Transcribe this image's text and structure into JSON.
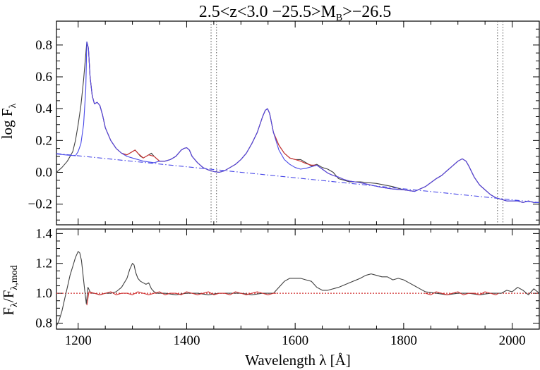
{
  "chart_data": [
    {
      "type": "line",
      "panel": "top",
      "title": "2.5<z<3.0 −25.5>M",
      "title_subscript": "B",
      "title_suffix": ">−26.5",
      "ylabel": "log F",
      "ylabel_subscript": "λ",
      "xlim": [
        1160,
        2050
      ],
      "ylim": [
        -0.33,
        0.95
      ],
      "yticks": [
        -0.2,
        0.0,
        0.2,
        0.4,
        0.6,
        0.8
      ],
      "ytick_labels": [
        "−0.2",
        "0.0",
        "0.2",
        "0.4",
        "0.6",
        "0.8"
      ],
      "xticks": [
        1200,
        1400,
        1600,
        1800,
        2000
      ],
      "vlines_dotted": [
        1445,
        1455,
        1973,
        1983
      ],
      "series": [
        {
          "role": "observed spectrum",
          "color": "#404040",
          "x": [
            1160,
            1170,
            1180,
            1190,
            1195,
            1200,
            1205,
            1210,
            1213,
            1216,
            1219,
            1222,
            1226,
            1230,
            1235,
            1240,
            1245,
            1250,
            1260,
            1270,
            1280,
            1290,
            1300,
            1305,
            1310,
            1315,
            1320,
            1330,
            1335,
            1340,
            1350,
            1360,
            1370,
            1380,
            1390,
            1395,
            1400,
            1405,
            1410,
            1420,
            1430,
            1440,
            1450,
            1460,
            1470,
            1480,
            1490,
            1500,
            1510,
            1520,
            1530,
            1540,
            1545,
            1549,
            1553,
            1560,
            1570,
            1580,
            1590,
            1600,
            1610,
            1620,
            1630,
            1640,
            1650,
            1660,
            1670,
            1680,
            1700,
            1720,
            1750,
            1780,
            1800,
            1820,
            1840,
            1860,
            1870,
            1880,
            1890,
            1900,
            1908,
            1915,
            1920,
            1930,
            1940,
            1950,
            1960,
            1970,
            1980,
            1990,
            2000,
            2010,
            2020,
            2030,
            2040,
            2050
          ],
          "y": [
            0.0,
            0.03,
            0.07,
            0.13,
            0.2,
            0.3,
            0.42,
            0.58,
            0.7,
            0.82,
            0.78,
            0.6,
            0.48,
            0.43,
            0.44,
            0.42,
            0.36,
            0.28,
            0.2,
            0.15,
            0.12,
            0.11,
            0.13,
            0.14,
            0.12,
            0.1,
            0.09,
            0.11,
            0.12,
            0.1,
            0.07,
            0.07,
            0.08,
            0.1,
            0.14,
            0.15,
            0.155,
            0.14,
            0.1,
            0.06,
            0.03,
            0.015,
            0.005,
            0.0,
            0.01,
            0.03,
            0.05,
            0.08,
            0.12,
            0.18,
            0.25,
            0.35,
            0.39,
            0.4,
            0.37,
            0.25,
            0.17,
            0.12,
            0.09,
            0.08,
            0.08,
            0.06,
            0.04,
            0.05,
            0.03,
            0.02,
            0.0,
            -0.04,
            -0.06,
            -0.06,
            -0.07,
            -0.09,
            -0.11,
            -0.12,
            -0.09,
            -0.04,
            -0.02,
            0.01,
            0.04,
            0.07,
            0.085,
            0.07,
            0.04,
            -0.03,
            -0.08,
            -0.11,
            -0.14,
            -0.16,
            -0.17,
            -0.18,
            -0.18,
            -0.18,
            -0.19,
            -0.18,
            -0.19,
            -0.19
          ]
        },
        {
          "role": "model fit",
          "color": "#d03030",
          "x": [
            1216,
            1219,
            1222,
            1226,
            1230,
            1235,
            1240,
            1245,
            1250,
            1260,
            1270,
            1280,
            1290,
            1300,
            1305,
            1310,
            1320,
            1330,
            1340,
            1350,
            1360,
            1370,
            1380,
            1390,
            1395,
            1400,
            1405,
            1410,
            1420,
            1430,
            1440,
            1450,
            1460,
            1470,
            1480,
            1490,
            1500,
            1510,
            1520,
            1530,
            1540,
            1545,
            1549,
            1553,
            1560,
            1570,
            1580,
            1590,
            1600,
            1610,
            1620,
            1630,
            1640,
            1650,
            1660,
            1670,
            1680,
            1690,
            1700,
            1710,
            1720,
            1740,
            1760,
            1780,
            1800,
            1820,
            1840,
            1860,
            1870,
            1880,
            1890,
            1900,
            1908,
            1915,
            1920,
            1930,
            1940,
            1950,
            1960,
            1970,
            1980,
            1990,
            2000,
            2010,
            2020,
            2030,
            2040,
            2050
          ],
          "y": [
            0.82,
            0.78,
            0.6,
            0.48,
            0.43,
            0.44,
            0.42,
            0.36,
            0.28,
            0.2,
            0.15,
            0.12,
            0.11,
            0.13,
            0.14,
            0.12,
            0.09,
            0.11,
            0.1,
            0.07,
            0.07,
            0.08,
            0.1,
            0.14,
            0.15,
            0.155,
            0.14,
            0.1,
            0.06,
            0.03,
            0.015,
            0.005,
            0.0,
            0.01,
            0.03,
            0.05,
            0.08,
            0.12,
            0.18,
            0.25,
            0.35,
            0.39,
            0.4,
            0.37,
            0.25,
            0.17,
            0.12,
            0.09,
            0.08,
            0.07,
            0.055,
            0.045,
            0.045,
            0.02,
            -0.005,
            -0.02,
            -0.03,
            -0.045,
            -0.055,
            -0.06,
            -0.065,
            -0.08,
            -0.095,
            -0.105,
            -0.11,
            -0.12,
            -0.09,
            -0.04,
            -0.02,
            0.01,
            0.04,
            0.07,
            0.085,
            0.07,
            0.04,
            -0.03,
            -0.08,
            -0.11,
            -0.14,
            -0.16,
            -0.17,
            -0.18,
            -0.18,
            -0.18,
            -0.19,
            -0.18,
            -0.19,
            -0.19
          ]
        },
        {
          "role": "line model",
          "color": "#4848e8",
          "x": [
            1160,
            1180,
            1195,
            1200,
            1205,
            1210,
            1214,
            1216,
            1219,
            1222,
            1226,
            1230,
            1235,
            1240,
            1245,
            1250,
            1260,
            1270,
            1280,
            1290,
            1300,
            1305,
            1310,
            1320,
            1330,
            1340,
            1350,
            1360,
            1370,
            1380,
            1390,
            1395,
            1400,
            1405,
            1410,
            1420,
            1430,
            1440,
            1450,
            1460,
            1470,
            1480,
            1490,
            1500,
            1510,
            1520,
            1530,
            1540,
            1545,
            1549,
            1553,
            1560,
            1570,
            1580,
            1590,
            1600,
            1610,
            1620,
            1630,
            1640,
            1650,
            1660,
            1670,
            1680,
            1690,
            1700,
            1710,
            1720,
            1740,
            1760,
            1780,
            1800,
            1820,
            1840,
            1860,
            1870,
            1880,
            1890,
            1900,
            1908,
            1915,
            1920,
            1930,
            1940,
            1950,
            1960,
            1970,
            1980,
            1990,
            2000,
            2010,
            2020,
            2030,
            2040,
            2050
          ],
          "y": [
            0.115,
            0.108,
            0.104,
            0.13,
            0.18,
            0.3,
            0.52,
            0.82,
            0.78,
            0.6,
            0.48,
            0.43,
            0.44,
            0.42,
            0.36,
            0.28,
            0.2,
            0.15,
            0.12,
            0.1,
            0.09,
            0.085,
            0.08,
            0.07,
            0.065,
            0.06,
            0.07,
            0.07,
            0.08,
            0.1,
            0.14,
            0.15,
            0.155,
            0.14,
            0.1,
            0.06,
            0.03,
            0.015,
            0.005,
            0.0,
            0.01,
            0.03,
            0.05,
            0.08,
            0.12,
            0.18,
            0.25,
            0.35,
            0.39,
            0.4,
            0.37,
            0.25,
            0.14,
            0.08,
            0.05,
            0.03,
            0.02,
            0.025,
            0.035,
            0.045,
            0.02,
            -0.005,
            -0.02,
            -0.03,
            -0.045,
            -0.055,
            -0.06,
            -0.065,
            -0.08,
            -0.095,
            -0.105,
            -0.11,
            -0.12,
            -0.09,
            -0.04,
            -0.02,
            0.01,
            0.04,
            0.07,
            0.085,
            0.07,
            0.04,
            -0.03,
            -0.08,
            -0.11,
            -0.14,
            -0.16,
            -0.17,
            -0.18,
            -0.18,
            -0.18,
            -0.19,
            -0.18,
            -0.19,
            -0.19
          ]
        },
        {
          "role": "continuum",
          "color": "#4848e8",
          "dash": "dash-dot",
          "x": [
            1160,
            2050
          ],
          "y": [
            0.118,
            -0.19
          ]
        }
      ]
    },
    {
      "type": "line",
      "panel": "bottom",
      "xlabel": "Wavelength λ [Å]",
      "ylabel": "F",
      "ylabel_subscript": "λ",
      "ylabel_mid": "/F",
      "ylabel_subscript2": "λ,mod",
      "xlim": [
        1160,
        2050
      ],
      "ylim": [
        0.76,
        1.43
      ],
      "yticks": [
        0.8,
        1.0,
        1.2,
        1.4
      ],
      "ytick_labels": [
        "0.8",
        "1.0",
        "1.2",
        "1.4"
      ],
      "xticks": [
        1200,
        1400,
        1600,
        1800,
        2000
      ],
      "xtick_labels": [
        "1200",
        "1400",
        "1600",
        "1800",
        "2000"
      ],
      "reference_line": {
        "y": 1.0,
        "color": "#d03030",
        "style": "dotted"
      },
      "series": [
        {
          "role": "ratio",
          "color": "#404040",
          "x": [
            1160,
            1165,
            1170,
            1175,
            1180,
            1185,
            1190,
            1195,
            1200,
            1203,
            1206,
            1209,
            1212,
            1215,
            1218,
            1222,
            1226,
            1230,
            1240,
            1250,
            1260,
            1270,
            1280,
            1290,
            1295,
            1300,
            1303,
            1306,
            1310,
            1315,
            1320,
            1325,
            1330,
            1335,
            1340,
            1345,
            1350,
            1360,
            1380,
            1400,
            1420,
            1440,
            1460,
            1480,
            1500,
            1520,
            1540,
            1560,
            1570,
            1580,
            1590,
            1600,
            1610,
            1620,
            1630,
            1640,
            1650,
            1660,
            1680,
            1700,
            1720,
            1730,
            1740,
            1750,
            1760,
            1770,
            1780,
            1790,
            1800,
            1810,
            1820,
            1830,
            1840,
            1860,
            1880,
            1900,
            1920,
            1940,
            1960,
            1980,
            1990,
            2000,
            2010,
            2020,
            2030,
            2040,
            2050
          ],
          "y": [
            0.78,
            0.82,
            0.88,
            0.96,
            1.04,
            1.12,
            1.18,
            1.24,
            1.28,
            1.27,
            1.22,
            1.12,
            1.02,
            0.93,
            1.04,
            1.01,
            1.0,
            1.0,
            0.99,
            1.0,
            1.0,
            1.01,
            1.04,
            1.1,
            1.16,
            1.2,
            1.19,
            1.14,
            1.1,
            1.08,
            1.07,
            1.06,
            1.07,
            1.03,
            1.01,
            1.0,
            1.0,
            1.0,
            0.99,
            1.0,
            1.0,
            0.99,
            1.0,
            1.0,
            1.0,
            0.99,
            1.0,
            1.0,
            1.04,
            1.08,
            1.1,
            1.1,
            1.1,
            1.09,
            1.08,
            1.04,
            1.02,
            1.02,
            1.04,
            1.07,
            1.1,
            1.12,
            1.13,
            1.12,
            1.11,
            1.11,
            1.09,
            1.1,
            1.09,
            1.07,
            1.05,
            1.03,
            1.01,
            1.0,
            0.99,
            1.0,
            1.0,
            0.99,
            1.0,
            1.0,
            1.02,
            1.01,
            1.04,
            1.02,
            0.99,
            1.03,
            1.0
          ]
        },
        {
          "role": "fitted-region ratio",
          "color": "#d03030",
          "x": [
            1216,
            1220,
            1230,
            1240,
            1250,
            1260,
            1270,
            1280,
            1290,
            1300,
            1310,
            1320,
            1330,
            1340,
            1350,
            1360,
            1370,
            1380,
            1390,
            1400,
            1410,
            1420,
            1430,
            1440,
            1450,
            1460,
            1470,
            1480,
            1490,
            1500,
            1510,
            1520,
            1530,
            1540,
            1550,
            1560,
            1565
          ],
          "y": [
            0.92,
            1.01,
            1.0,
            0.99,
            1.0,
            1.01,
            0.99,
            1.0,
            1.0,
            0.99,
            1.01,
            1.0,
            0.99,
            1.0,
            1.01,
            0.99,
            1.0,
            1.0,
            0.99,
            1.01,
            1.0,
            0.99,
            1.0,
            1.01,
            0.99,
            1.0,
            1.0,
            0.99,
            1.01,
            1.0,
            0.99,
            1.0,
            1.01,
            1.0,
            0.99,
            1.0,
            1.0
          ]
        },
        {
          "role": "fitted-region ratio 2",
          "color": "#d03030",
          "x": [
            1840,
            1850,
            1860,
            1870,
            1880,
            1890,
            1900,
            1910,
            1920,
            1930,
            1940,
            1950,
            1960,
            1970,
            1975
          ],
          "y": [
            1.0,
            0.99,
            1.01,
            1.0,
            0.99,
            1.0,
            1.01,
            0.99,
            1.0,
            1.0,
            0.99,
            1.01,
            1.0,
            0.99,
            1.0
          ]
        }
      ]
    }
  ]
}
